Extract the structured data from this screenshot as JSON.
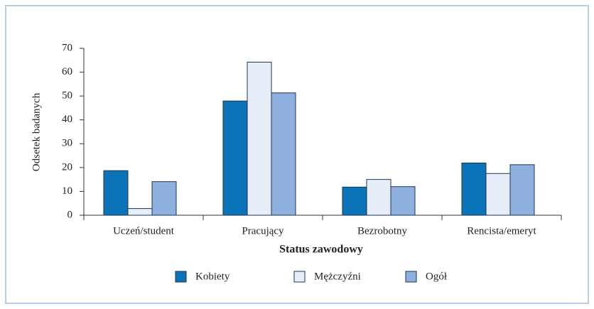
{
  "chart_data": {
    "type": "bar",
    "categories": [
      "Uczeń/student",
      "Pracujący",
      "Bezrobotny",
      "Rencista/emeryt"
    ],
    "series": [
      {
        "name": "Kobiety",
        "color": "#0b73b7",
        "values": [
          18.7,
          47.9,
          11.8,
          21.9
        ]
      },
      {
        "name": "Mężczyźni",
        "color": "#e6eef9",
        "values": [
          2.8,
          64.2,
          15.0,
          17.5
        ]
      },
      {
        "name": "Ogół",
        "color": "#8db0de",
        "values": [
          14.1,
          51.3,
          12.0,
          21.2
        ]
      }
    ],
    "ylabel": "Odsetek badanych",
    "xlabel": "Status zawodowy",
    "ylim": [
      0,
      70
    ],
    "yticks": [
      0,
      10,
      20,
      30,
      40,
      50,
      60,
      70
    ]
  }
}
